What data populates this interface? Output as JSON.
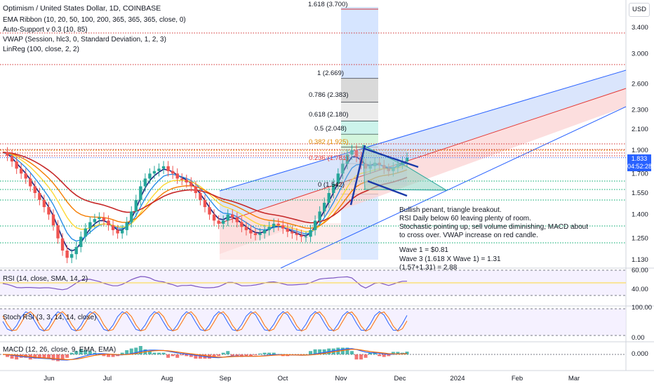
{
  "header": {
    "title": "Optimism / United States Dollar, 1D, COINBASE",
    "indicators": [
      "EMA Ribbon (10, 20, 50, 100, 200, 365, 365, 365, close, 0)",
      "Auto-Support v 0.3 (10, 85)",
      "VWAP (Session, hlc3, 0, Standard Deviation, 1, 2, 3)",
      "LinReg (100, close, 2, 2)"
    ]
  },
  "currency_button": "USD",
  "current_price": {
    "value": "1.833",
    "countdown": "04:52:28"
  },
  "fib_levels": [
    {
      "label": "1.618 (3.700)",
      "value": 3.7
    },
    {
      "label": "1 (2.669)",
      "value": 2.669
    },
    {
      "label": "0.786 (2.383)",
      "value": 2.383
    },
    {
      "label": "0.618 (2.180)",
      "value": 2.18
    },
    {
      "label": "0.5 (2.048)",
      "value": 2.048
    },
    {
      "label": "0.382 (1.925)",
      "value": 1.925
    },
    {
      "label": "0.236 (1.781)",
      "value": 1.781
    },
    {
      "label": "0 (1.542)",
      "value": 1.542
    }
  ],
  "annotation": [
    "Bullish penant, triangle breakout.",
    "RSI Daily below 60 leaving plenty of room.",
    "Stochastic pointing up, sell volume diminishing,  MACD about",
    "to cross over. VWAP increase on red candle.",
    "",
    "Wave 1 = $0.81",
    "Wave 3 (1.618 X Wave 1) = 1.31",
    "(1.57+1.31) = 2.88"
  ],
  "panes": {
    "rsi": {
      "label": "RSI (14, close, SMA, 14, 2)",
      "ticks": [
        "60.00",
        "40.00"
      ]
    },
    "stoch": {
      "label": "Stoch RSI (3, 3, 14, 14, close)",
      "ticks": [
        "100.00",
        "0.00"
      ]
    },
    "macd": {
      "label": "MACD (12, 26, close, 9, EMA, EMA)",
      "ticks": [
        "0.000"
      ]
    }
  },
  "chart_data": {
    "type": "candlestick",
    "symbol": "OP/USD",
    "interval": "1D",
    "y_axis_ticks": [
      3.4,
      3.0,
      2.6,
      2.3,
      2.1,
      1.9,
      1.7,
      1.55,
      1.4,
      1.25,
      1.13
    ],
    "y_axis_tick_labels": [
      "3.400",
      "3.000",
      "2.600",
      "2.300",
      "2.100",
      "1.900",
      "1.700",
      "1.550",
      "1.400",
      "1.250",
      "1.130"
    ],
    "x_axis_tick_labels": [
      "Jun",
      "Jul",
      "Aug",
      "Sep",
      "Oct",
      "Nov",
      "Dec",
      "2024",
      "Feb",
      "Mar"
    ],
    "y_scale": "log",
    "close_series_approx": [
      1.88,
      1.85,
      1.8,
      1.74,
      1.7,
      1.66,
      1.6,
      1.55,
      1.5,
      1.45,
      1.4,
      1.33,
      1.25,
      1.18,
      1.14,
      1.16,
      1.2,
      1.26,
      1.31,
      1.35,
      1.37,
      1.38,
      1.36,
      1.33,
      1.3,
      1.28,
      1.3,
      1.35,
      1.42,
      1.5,
      1.6,
      1.66,
      1.7,
      1.72,
      1.74,
      1.76,
      1.72,
      1.7,
      1.66,
      1.65,
      1.63,
      1.6,
      1.55,
      1.5,
      1.45,
      1.4,
      1.36,
      1.34,
      1.36,
      1.4,
      1.38,
      1.35,
      1.32,
      1.3,
      1.28,
      1.27,
      1.28,
      1.3,
      1.32,
      1.34,
      1.33,
      1.31,
      1.29,
      1.28,
      1.27,
      1.26,
      1.26,
      1.3,
      1.36,
      1.42,
      1.48,
      1.55,
      1.62,
      1.7,
      1.78,
      1.86,
      1.9,
      1.84,
      1.78,
      1.74,
      1.76,
      1.79,
      1.77,
      1.74,
      1.72,
      1.75,
      1.78,
      1.8,
      1.833
    ],
    "current_price": 1.833
  }
}
